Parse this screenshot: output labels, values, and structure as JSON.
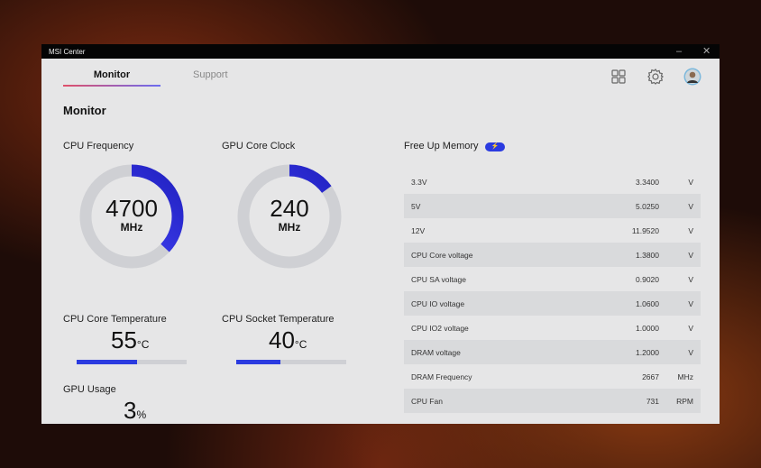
{
  "window": {
    "title": "MSI Center",
    "minimize": "–",
    "close": "✕"
  },
  "tabs": [
    {
      "label": "Monitor",
      "active": true
    },
    {
      "label": "Support",
      "active": false
    }
  ],
  "header_icons": [
    "grid-icon",
    "gear-icon",
    "avatar"
  ],
  "page_title": "Monitor",
  "gauges": [
    {
      "label": "CPU Frequency",
      "value": "4700",
      "unit": "MHz",
      "fill": 0.37
    },
    {
      "label": "GPU Core Clock",
      "value": "240",
      "unit": "MHz",
      "fill": 0.15
    }
  ],
  "temps": [
    {
      "label": "CPU Core Temperature",
      "value": "55",
      "unit": "°C",
      "fill": 0.55
    },
    {
      "label": "CPU Socket Temperature",
      "value": "40",
      "unit": "°C",
      "fill": 0.4
    }
  ],
  "gpu_usage": {
    "label": "GPU Usage",
    "value": "3",
    "unit": "%"
  },
  "free_memory": {
    "label": "Free Up Memory",
    "toggle_on": true
  },
  "readings": [
    {
      "name": "3.3V",
      "value": "3.3400",
      "unit": "V"
    },
    {
      "name": "5V",
      "value": "5.0250",
      "unit": "V"
    },
    {
      "name": "12V",
      "value": "11.9520",
      "unit": "V"
    },
    {
      "name": "CPU Core voltage",
      "value": "1.3800",
      "unit": "V"
    },
    {
      "name": "CPU SA voltage",
      "value": "0.9020",
      "unit": "V"
    },
    {
      "name": "CPU IO voltage",
      "value": "1.0600",
      "unit": "V"
    },
    {
      "name": "CPU IO2 voltage",
      "value": "1.0000",
      "unit": "V"
    },
    {
      "name": "DRAM voltage",
      "value": "1.2000",
      "unit": "V"
    },
    {
      "name": "DRAM Frequency",
      "value": "2667",
      "unit": "MHz"
    },
    {
      "name": "CPU Fan",
      "value": "731",
      "unit": "RPM"
    }
  ],
  "colors": {
    "accent": "#2b3be0",
    "accent_start": "#9a3cb0",
    "track": "#cfd0d4"
  }
}
